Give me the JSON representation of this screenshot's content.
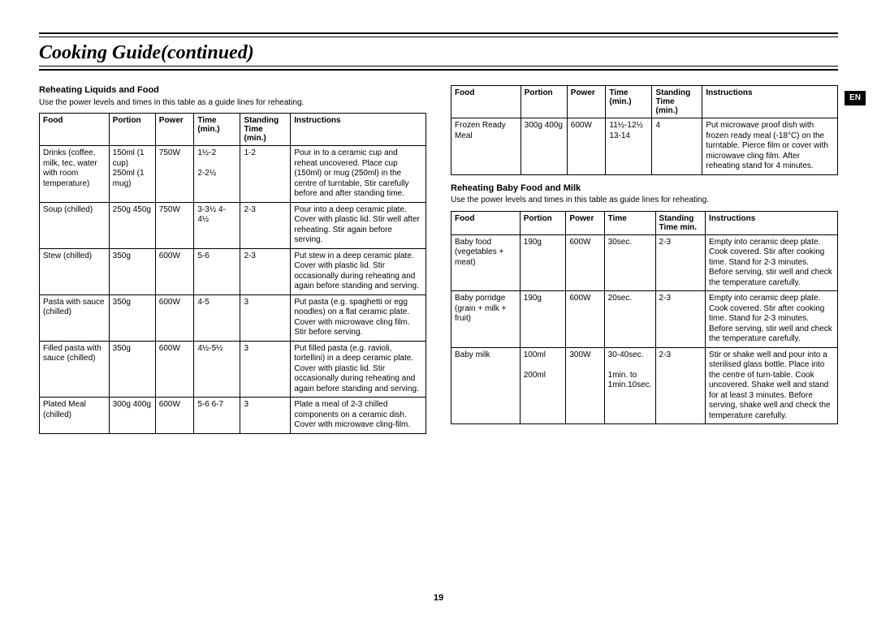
{
  "page": {
    "title": "Cooking Guide(continued)",
    "pageNumber": "19",
    "langBadge": "EN"
  },
  "tableHeaders": {
    "food": "Food",
    "portion": "Portion",
    "power": "Power",
    "time": "Time (min.)",
    "standing": "Standing Time (min.)",
    "standingShort": "Standing Time min.",
    "instructions": "Instructions"
  },
  "section1": {
    "title": "Reheating Liquids and Food",
    "intro": "Use the power levels and times in this table as a guide lines for reheating.",
    "rows": [
      {
        "food": "Drinks (coffee, milk, tec, water with room temperature)",
        "portion": "150ml (1 cup) 250ml (1 mug)",
        "power": "750W",
        "time": "1½-2\n\n2-2½",
        "standing": "1-2",
        "instructions": "Pour in to a ceramic cup and reheat uncovered. Place cup (150ml) or mug (250ml) in the centre of turntable, Stir carefully before and after standing time."
      },
      {
        "food": "Soup (chilled)",
        "portion": "250g 450g",
        "power": "750W",
        "time": "3-3½ 4-4½",
        "standing": "2-3",
        "instructions": "Pour into a deep ceramic plate. Cover with plastic lid. Stir well after reheating. Stir again before serving."
      },
      {
        "food": "Stew (chilled)",
        "portion": "350g",
        "power": "600W",
        "time": "5-6",
        "standing": "2-3",
        "instructions": "Put stew in a deep ceramic plate. Cover with plastic lid. Stir occasionally during reheating and again before standing and serving."
      },
      {
        "food": "Pasta with sauce (chilled)",
        "portion": "350g",
        "power": "600W",
        "time": "4-5",
        "standing": "3",
        "instructions": "Put pasta (e.g. spaghetti or egg noodles) on a flat ceramic plate. Cover with microwave cling film. Stir before serving."
      },
      {
        "food": "Filled pasta with sauce (chilled)",
        "portion": "350g",
        "power": "600W",
        "time": "4½-5½",
        "standing": "3",
        "instructions": "Put filled pasta (e.g. ravioli, tortellini) in a deep ceramic plate. Cover with plastic lid. Stir occasionally during reheating and again before standing and serving."
      },
      {
        "food": "Plated Meal (chilled)",
        "portion": "300g 400g",
        "power": "600W",
        "time": "5-6 6-7",
        "standing": "3",
        "instructions": "Plate a meal of 2-3 chilled components on a ceramic dish. Cover with microwave cling-film."
      }
    ]
  },
  "section2": {
    "rows": [
      {
        "food": "Frozen Ready Meal",
        "portion": "300g 400g",
        "power": "600W",
        "time": "11½-12½ 13-14",
        "standing": "4",
        "instructions": "Put microwave proof dish with frozen ready meal (-18°C) on the turntable. Pierce film or cover with microwave cling film. After reheating stand for 4 minutes."
      }
    ]
  },
  "section3": {
    "title": "Reheating Baby Food and Milk",
    "intro": "Use the power levels and times in this table as guide lines for reheating.",
    "rows": [
      {
        "food": "Baby food (vegetables + meat)",
        "portion": "190g",
        "power": "600W",
        "time": "30sec.",
        "standing": "2-3",
        "instructions": "Empty into ceramic deep plate. Cook covered. Stir after cooking time. Stand for 2-3 minutes. Before serving, stir well and check the temperature carefully."
      },
      {
        "food": "Baby porridge (grain + milk + fruit)",
        "portion": "190g",
        "power": "600W",
        "time": "20sec.",
        "standing": "2-3",
        "instructions": "Empty into ceramic deep plate. Cook covered. Stir after cooking time. Stand for 2-3 minutes. Before serving, stir well and check the temperature carefully."
      },
      {
        "food": "Baby milk",
        "portion": "100ml\n\n200ml",
        "power": "300W",
        "time": "30-40sec.\n\n1min. to 1min.10sec.",
        "standing": "2-3",
        "instructions": "Stir or shake well and pour into a sterilised glass bottle. Place into the centre of turn-table. Cook uncovered. Shake well and stand for at least 3 minutes. Before serving, shake well and check the temperature carefully."
      }
    ]
  },
  "style": {
    "textColor": "#000000",
    "bgColor": "#ffffff",
    "badgeBg": "#000000",
    "badgeText": "#ffffff",
    "fontBody": "Arial",
    "fontTitle": "Times New Roman",
    "fontSizeBody": 10,
    "fontSizeTitle": 24
  }
}
